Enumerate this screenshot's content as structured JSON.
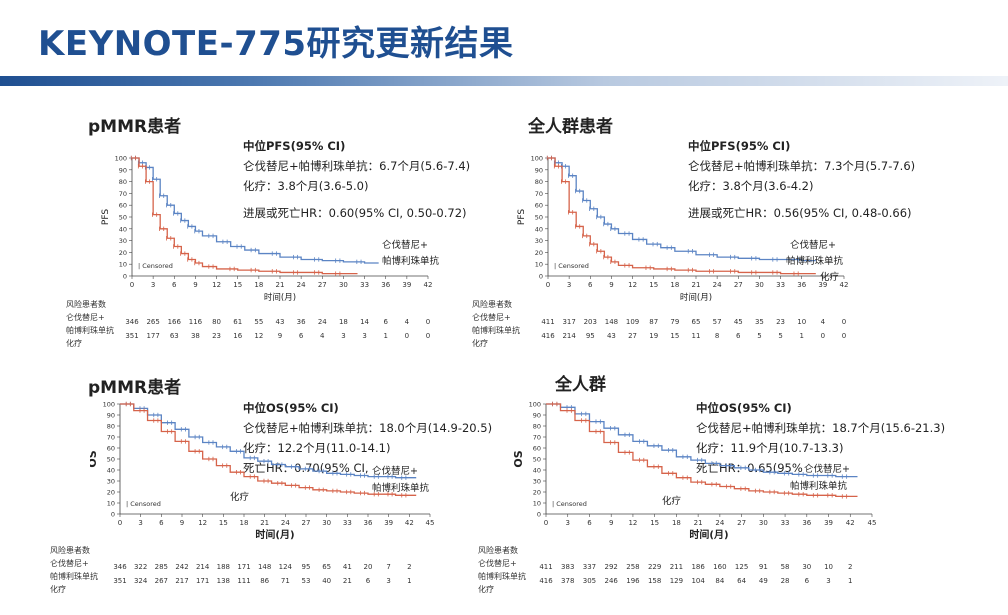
{
  "page": {
    "title": "KEYNOTE-775研究更新结果"
  },
  "panels": [
    {
      "title": "pMMR患者",
      "info": {
        "heading": "中位PFS(95% CI)",
        "lines": [
          "仑伐替尼+帕博利珠单抗：6.7个月(5.6-7.4)",
          "化疗：3.8个月(3.6-5.0)"
        ],
        "hr": "进展或死亡HR：0.60(95% CI, 0.50-0.72)"
      },
      "risk": {
        "header": "风险患者数",
        "row_labels": [
          "仑伐替尼+",
          "帕博利珠单抗",
          "化疗"
        ]
      }
    },
    {
      "title": "全人群患者",
      "info": {
        "heading": "中位PFS(95% CI)",
        "lines": [
          "仑伐替尼+帕博利珠单抗：7.3个月(5.7-7.6)",
          "化疗：3.8个月(3.6-4.2)"
        ],
        "hr": "进展或死亡HR：0.56(95% CI, 0.48-0.66)"
      },
      "risk": {
        "header": "风险患者数",
        "row_labels": [
          "仑伐替尼+",
          "帕博利珠单抗",
          "化疗"
        ]
      }
    },
    {
      "title": "pMMR患者",
      "info": {
        "heading": "中位OS(95% CI)",
        "lines": [
          "仑伐替尼+帕博利珠单抗：18.0个月(14.9-20.5)",
          "化疗：12.2个月(11.0-14.1)"
        ],
        "hr": "死亡HR：0.70(95% CI,"
      },
      "risk": {
        "header": "风险患者数",
        "row_labels": [
          "仑伐替尼+",
          "帕博利珠单抗",
          "化疗"
        ]
      }
    },
    {
      "title": "全人群",
      "info": {
        "heading": "中位OS(95% CI)",
        "lines": [
          "仑伐替尼+帕博利珠单抗：18.7个月(15.6-21.3)",
          "化疗：11.9个月(10.7-13.3)"
        ],
        "hr": "死亡HR：0.65(95%"
      },
      "risk": {
        "header": "风险患者数",
        "row_labels": [
          "仑伐替尼+",
          "帕博利珠单抗",
          "化疗"
        ]
      }
    }
  ],
  "chart_data": [
    {
      "type": "line",
      "ylabel": "PFS",
      "xlabel": "时间(月)",
      "ylim": [
        0,
        100
      ],
      "xlim": [
        0,
        42
      ],
      "yticks": [
        0,
        10,
        20,
        30,
        40,
        50,
        60,
        70,
        80,
        90,
        100
      ],
      "xticks": [
        0,
        3,
        6,
        9,
        12,
        15,
        18,
        21,
        24,
        27,
        30,
        33,
        36,
        39,
        42
      ],
      "censored_label": "Censored",
      "series": [
        {
          "name": "仑伐替尼+帕博利珠单抗",
          "color": "#5b84c4",
          "x": [
            0,
            1,
            2,
            3,
            4,
            5,
            6,
            7,
            8,
            9,
            10,
            12,
            14,
            16,
            18,
            21,
            24,
            27,
            30,
            33
          ],
          "y": [
            100,
            96,
            92,
            82,
            68,
            60,
            53,
            47,
            42,
            38,
            34,
            29,
            25,
            22,
            19,
            16,
            14,
            13,
            12,
            11
          ]
        },
        {
          "name": "化疗",
          "color": "#d6634a",
          "x": [
            0,
            1,
            2,
            3,
            4,
            5,
            6,
            7,
            8,
            9,
            10,
            12,
            15,
            18,
            21,
            24,
            27,
            30
          ],
          "y": [
            100,
            93,
            80,
            52,
            40,
            32,
            25,
            19,
            14,
            11,
            8,
            6,
            5,
            4,
            3,
            3,
            2,
            2
          ]
        }
      ],
      "series_labels": [
        "仑伐替尼+",
        "帕博利珠单抗",
        "化疗"
      ],
      "risk_table": {
        "lenvatinib": [
          346,
          265,
          166,
          116,
          80,
          61,
          55,
          43,
          36,
          24,
          18,
          14,
          6,
          4,
          0
        ],
        "chemo": [
          351,
          177,
          63,
          38,
          23,
          16,
          12,
          9,
          6,
          4,
          3,
          3,
          1,
          0,
          0
        ]
      }
    },
    {
      "type": "line",
      "ylabel": "PFS",
      "xlabel": "时间(月)",
      "ylim": [
        0,
        100
      ],
      "xlim": [
        0,
        42
      ],
      "yticks": [
        0,
        10,
        20,
        30,
        40,
        50,
        60,
        70,
        80,
        90,
        100
      ],
      "xticks": [
        0,
        3,
        6,
        9,
        12,
        15,
        18,
        21,
        24,
        27,
        30,
        33,
        36,
        39,
        42
      ],
      "censored_label": "Censored",
      "series": [
        {
          "name": "仑伐替尼+帕博利珠单抗",
          "color": "#5b84c4",
          "x": [
            0,
            1,
            2,
            3,
            4,
            5,
            6,
            7,
            8,
            9,
            10,
            12,
            14,
            16,
            18,
            21,
            24,
            27,
            30,
            33,
            36
          ],
          "y": [
            100,
            96,
            93,
            85,
            72,
            64,
            57,
            50,
            44,
            40,
            36,
            31,
            27,
            24,
            21,
            18,
            16,
            15,
            14,
            14,
            13
          ]
        },
        {
          "name": "化疗",
          "color": "#d6634a",
          "x": [
            0,
            1,
            2,
            3,
            4,
            5,
            6,
            7,
            8,
            9,
            10,
            12,
            15,
            18,
            21,
            24,
            27,
            30,
            33,
            36
          ],
          "y": [
            100,
            93,
            80,
            54,
            42,
            34,
            27,
            21,
            16,
            12,
            9,
            7,
            6,
            5,
            4,
            4,
            3,
            3,
            2,
            2
          ]
        }
      ],
      "series_labels": [
        "仑伐替尼+",
        "帕博利珠单抗",
        "化疗"
      ],
      "risk_table": {
        "lenvatinib": [
          411,
          317,
          203,
          148,
          109,
          87,
          79,
          65,
          57,
          45,
          35,
          23,
          10,
          4,
          0
        ],
        "chemo": [
          416,
          214,
          95,
          43,
          27,
          19,
          15,
          11,
          8,
          6,
          5,
          5,
          1,
          0,
          0
        ]
      }
    },
    {
      "type": "line",
      "ylabel": "OS",
      "xlabel": "时间(月)",
      "ylim": [
        0,
        100
      ],
      "xlim": [
        0,
        45
      ],
      "yticks": [
        0,
        10,
        20,
        30,
        40,
        50,
        60,
        70,
        80,
        90,
        100
      ],
      "xticks": [
        0,
        3,
        6,
        9,
        12,
        15,
        18,
        21,
        24,
        27,
        30,
        33,
        36,
        39,
        42,
        45
      ],
      "censored_label": "Censored",
      "series": [
        {
          "name": "仑伐替尼+帕博利珠单抗",
          "color": "#5b84c4",
          "x": [
            0,
            2,
            4,
            6,
            8,
            10,
            12,
            14,
            16,
            18,
            20,
            22,
            24,
            26,
            28,
            30,
            32,
            34,
            36,
            38,
            40,
            42
          ],
          "y": [
            100,
            96,
            90,
            83,
            77,
            70,
            65,
            61,
            57,
            51,
            48,
            45,
            43,
            41,
            39,
            37,
            36,
            35,
            34,
            34,
            33,
            33
          ]
        },
        {
          "name": "化疗",
          "color": "#d6634a",
          "x": [
            0,
            2,
            4,
            6,
            8,
            10,
            12,
            14,
            16,
            18,
            20,
            22,
            24,
            26,
            28,
            30,
            32,
            34,
            36,
            38,
            40,
            42
          ],
          "y": [
            100,
            94,
            85,
            75,
            66,
            57,
            50,
            44,
            38,
            34,
            30,
            28,
            26,
            24,
            22,
            21,
            20,
            19,
            18,
            18,
            17,
            17
          ]
        }
      ],
      "series_labels": [
        "仑伐替尼+",
        "帕博利珠单抗",
        "化疗"
      ],
      "risk_table": {
        "lenvatinib": [
          346,
          322,
          285,
          242,
          214,
          188,
          171,
          148,
          124,
          95,
          65,
          41,
          20,
          7,
          2
        ],
        "chemo": [
          351,
          324,
          267,
          217,
          171,
          138,
          111,
          86,
          71,
          53,
          40,
          21,
          6,
          3,
          1
        ]
      }
    },
    {
      "type": "line",
      "ylabel": "OS",
      "xlabel": "时间(月)",
      "ylim": [
        0,
        100
      ],
      "xlim": [
        0,
        45
      ],
      "yticks": [
        0,
        10,
        20,
        30,
        40,
        50,
        60,
        70,
        80,
        90,
        100
      ],
      "xticks": [
        0,
        3,
        6,
        9,
        12,
        15,
        18,
        21,
        24,
        27,
        30,
        33,
        36,
        39,
        42,
        45
      ],
      "censored_label": "Censored",
      "series": [
        {
          "name": "仑伐替尼+帕博利珠单抗",
          "color": "#5b84c4",
          "x": [
            0,
            2,
            4,
            6,
            8,
            10,
            12,
            14,
            16,
            18,
            20,
            22,
            24,
            26,
            28,
            30,
            32,
            34,
            36,
            38,
            40,
            42
          ],
          "y": [
            100,
            97,
            91,
            84,
            78,
            72,
            66,
            62,
            58,
            52,
            49,
            46,
            44,
            42,
            40,
            38,
            37,
            36,
            35,
            35,
            34,
            34
          ]
        },
        {
          "name": "化疗",
          "color": "#d6634a",
          "x": [
            0,
            2,
            4,
            6,
            8,
            10,
            12,
            14,
            16,
            18,
            20,
            22,
            24,
            26,
            28,
            30,
            32,
            34,
            36,
            38,
            40,
            42
          ],
          "y": [
            100,
            94,
            85,
            75,
            65,
            56,
            49,
            43,
            37,
            33,
            29,
            27,
            25,
            23,
            21,
            20,
            19,
            18,
            17,
            17,
            16,
            16
          ]
        }
      ],
      "series_labels": [
        "仑伐替尼+",
        "帕博利珠单抗",
        "化疗"
      ],
      "risk_table": {
        "lenvatinib": [
          411,
          383,
          337,
          292,
          258,
          229,
          211,
          186,
          160,
          125,
          91,
          58,
          30,
          10,
          2
        ],
        "chemo": [
          416,
          378,
          305,
          246,
          196,
          158,
          129,
          104,
          84,
          64,
          49,
          28,
          6,
          3,
          1
        ]
      }
    }
  ]
}
